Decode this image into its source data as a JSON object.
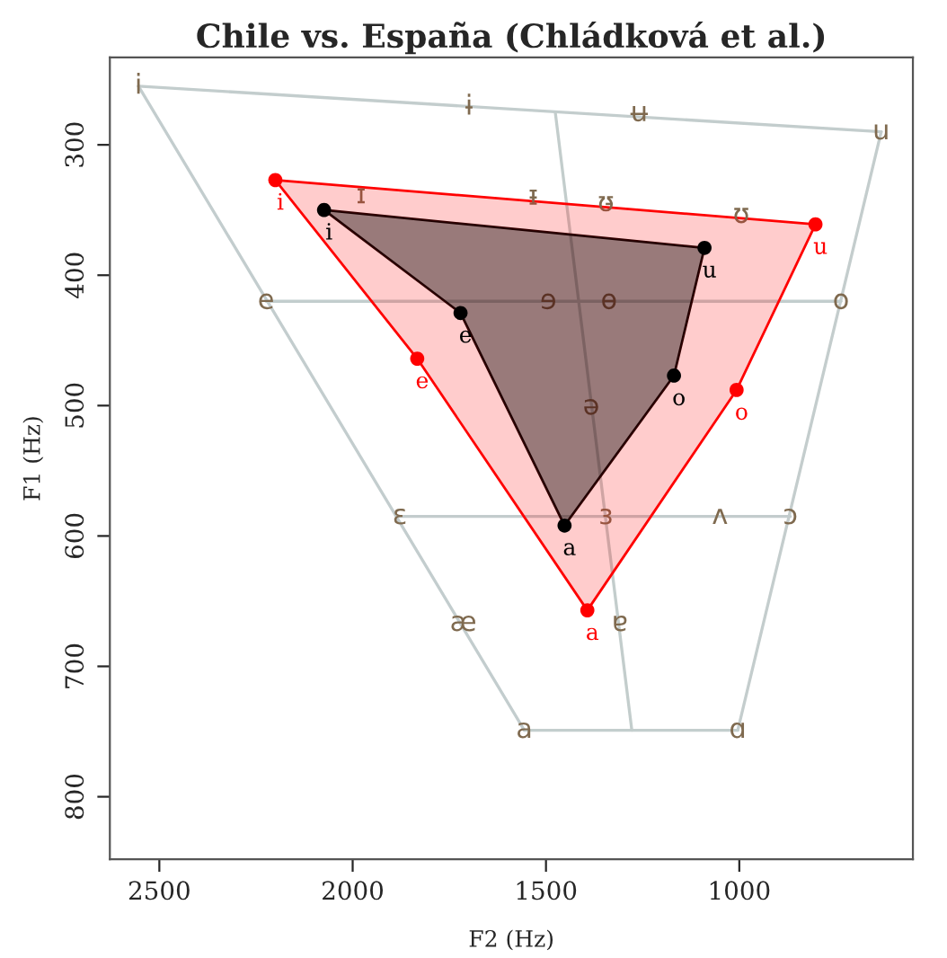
{
  "chart_data": {
    "type": "area",
    "title": "Chile vs. España (Chládková et al.)",
    "xlabel": "F2 (Hz)",
    "ylabel": "F1 (Hz)",
    "xlim": [
      2628,
      551
    ],
    "ylim": [
      848,
      233
    ],
    "xticks": [
      2500,
      2000,
      1500,
      1000
    ],
    "yticks": [
      300,
      400,
      500,
      600,
      700,
      800
    ],
    "grid": false,
    "legend": false,
    "marker": "circle",
    "series": [
      {
        "type": "line",
        "marker": "none",
        "color": "#c3cdcd",
        "x": [
          2554,
          633
        ],
        "values": [
          255,
          290
        ]
      },
      {
        "type": "line",
        "marker": "none",
        "color": "#c4cdcd",
        "x": [
          633,
          1004
        ],
        "values": [
          290,
          749
        ]
      },
      {
        "type": "line",
        "marker": "none",
        "color": "#c3cecd",
        "x": [
          1556,
          1004
        ],
        "values": [
          749,
          749
        ]
      },
      {
        "type": "line",
        "marker": "none",
        "color": "#c3cdce",
        "x": [
          2554,
          1556
        ],
        "values": [
          255,
          749
        ]
      },
      {
        "type": "line",
        "marker": "none",
        "color": "#c2cdcd",
        "x": [
          2224,
          737
        ],
        "values": [
          420,
          420
        ]
      },
      {
        "type": "line",
        "marker": "none",
        "color": "#c3cccd",
        "x": [
          1878,
          868
        ],
        "values": [
          585,
          585
        ]
      },
      {
        "type": "line",
        "marker": "none",
        "color": "#c3cdcc",
        "x": [
          1476,
          1278
        ],
        "values": [
          275,
          749
        ]
      },
      {
        "color": "#ff0000",
        "x": [
          2200,
          1833,
          1393,
          1007,
          803
        ],
        "values": [
          327,
          464,
          657,
          488,
          361
        ],
        "value_labels": [
          "i",
          "e",
          "a",
          "o",
          "u"
        ]
      },
      {
        "color": "#000000",
        "x": [
          2074,
          1721,
          1452,
          1169,
          1090
        ],
        "values": [
          350,
          429,
          592,
          477,
          379
        ],
        "value_labels": [
          "i",
          "e",
          "a",
          "o",
          "u"
        ]
      }
    ],
    "annotations": [
      {
        "text": "i",
        "x": 2554,
        "y": 255
      },
      {
        "text": "ɨ",
        "x": 1699,
        "y": 271
      },
      {
        "text": "ʉ",
        "x": 1259,
        "y": 276
      },
      {
        "text": "u",
        "x": 633,
        "y": 290
      },
      {
        "text": "ɪ",
        "x": 1978,
        "y": 339
      },
      {
        "text": "ᵻ",
        "x": 1533,
        "y": 340
      },
      {
        "text": "ʊ̵",
        "x": 1345,
        "y": 345
      },
      {
        "text": "ʊ",
        "x": 995,
        "y": 354
      },
      {
        "text": "e",
        "x": 2224,
        "y": 420
      },
      {
        "text": "ɘ",
        "x": 1494,
        "y": 420
      },
      {
        "text": "ɵ",
        "x": 1337,
        "y": 420
      },
      {
        "text": "o",
        "x": 737,
        "y": 420
      },
      {
        "text": "ə",
        "x": 1383,
        "y": 501
      },
      {
        "text": "ɛ",
        "x": 1878,
        "y": 585
      },
      {
        "text": "ɜ",
        "x": 1345,
        "y": 585
      },
      {
        "text": "ʌ",
        "x": 1050,
        "y": 585
      },
      {
        "text": "ɔ",
        "x": 868,
        "y": 585
      },
      {
        "text": "æ",
        "x": 1714,
        "y": 667
      },
      {
        "text": "ɐ",
        "x": 1309,
        "y": 667
      },
      {
        "text": "a",
        "x": 1556,
        "y": 749
      },
      {
        "text": "ɑ",
        "x": 1004,
        "y": 749
      }
    ]
  }
}
